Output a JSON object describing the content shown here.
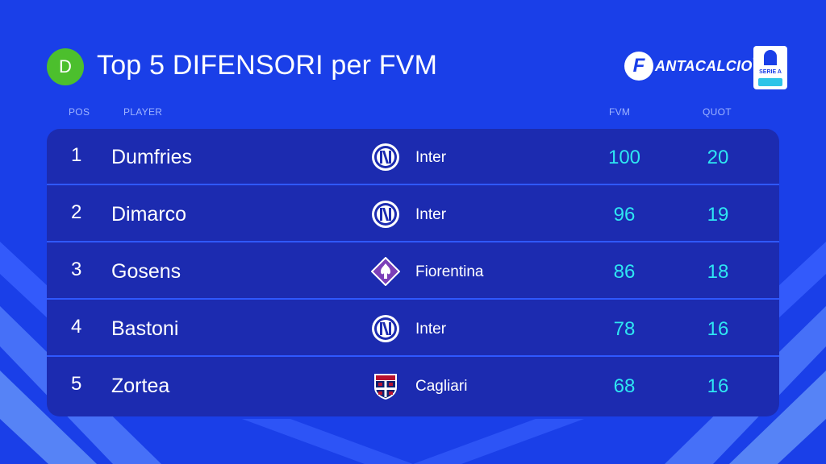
{
  "header": {
    "badge": "D",
    "title": "Top 5 DIFENSORI per FVM",
    "brand_initial": "F",
    "brand_text": "ANTACALCIO",
    "brand_reg": "®",
    "league_logo_text": "SERIE A"
  },
  "columns": {
    "pos": "POS",
    "player": "PLAYER",
    "fvm": "FVM",
    "quot": "QUOT"
  },
  "rows": [
    {
      "pos": "1",
      "player": "Dumfries",
      "team": "Inter",
      "crest": "inter-crest-icon",
      "fvm": "100",
      "quot": "20"
    },
    {
      "pos": "2",
      "player": "Dimarco",
      "team": "Inter",
      "crest": "inter-crest-icon",
      "fvm": "96",
      "quot": "19"
    },
    {
      "pos": "3",
      "player": "Gosens",
      "team": "Fiorentina",
      "crest": "fiorentina-crest-icon",
      "fvm": "86",
      "quot": "18"
    },
    {
      "pos": "4",
      "player": "Bastoni",
      "team": "Inter",
      "crest": "inter-crest-icon",
      "fvm": "78",
      "quot": "16"
    },
    {
      "pos": "5",
      "player": "Zortea",
      "team": "Cagliari",
      "crest": "cagliari-crest-icon",
      "fvm": "68",
      "quot": "16"
    }
  ],
  "colors": {
    "background": "#1a3fe8",
    "panel": "#1c2bb0",
    "divider": "#2f58ff",
    "accent_values": "#2ee6f2",
    "badge": "#4cbf2d",
    "header_labels": "#9fb4ff"
  }
}
